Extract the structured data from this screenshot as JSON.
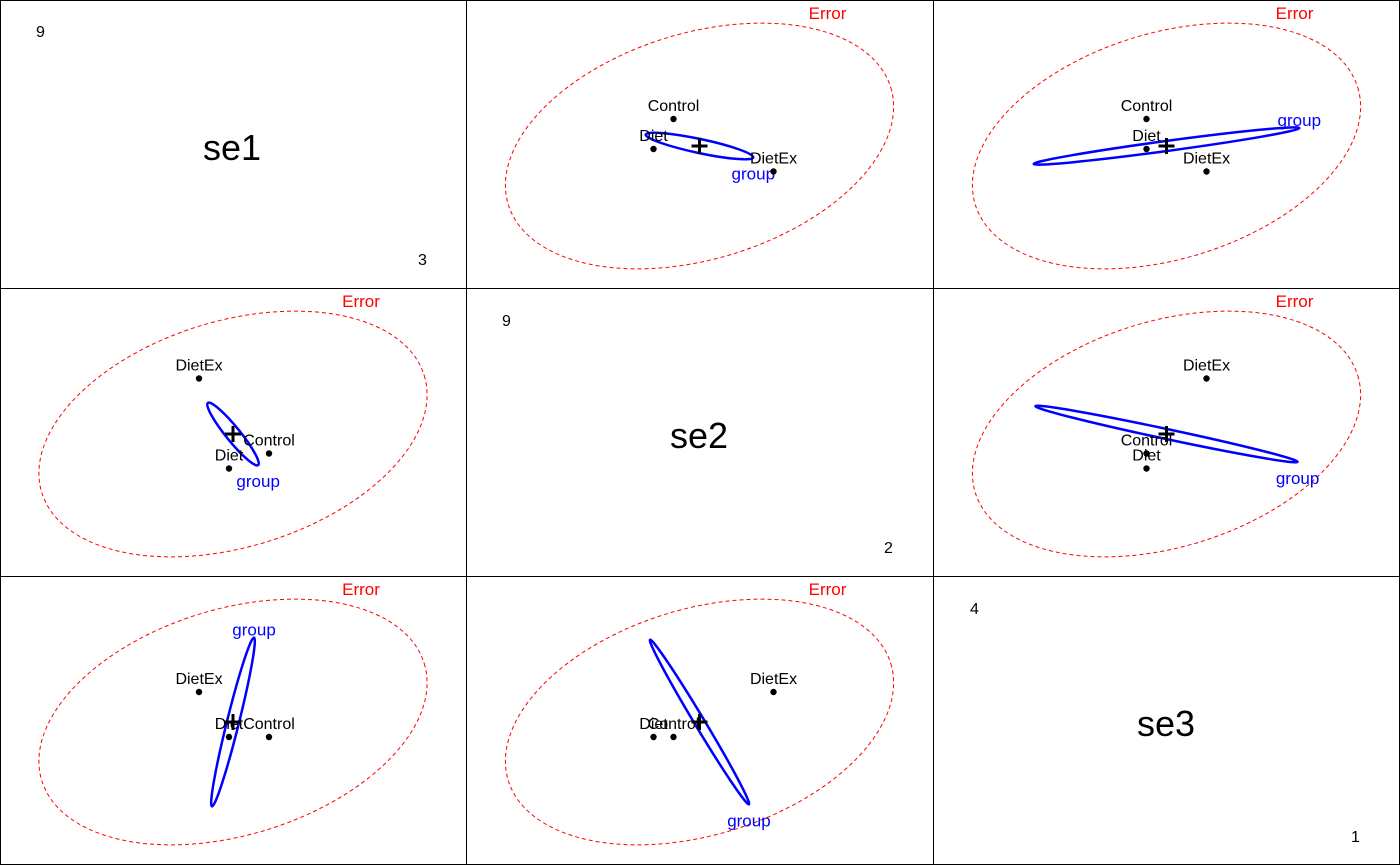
{
  "chart_data": {
    "type": "scatter",
    "variables": [
      {
        "name": "se1",
        "min": "3",
        "max": "9"
      },
      {
        "name": "se2",
        "min": "2",
        "max": "9"
      },
      {
        "name": "se3",
        "min": "1",
        "max": "4"
      }
    ],
    "levels": [
      "Control",
      "Diet",
      "DietEx"
    ],
    "hypothesis_label": "group",
    "error_label": "Error",
    "colors": {
      "hypothesis": "#0000ff",
      "error": "#ff0000",
      "points": "#000000",
      "text": "#000000"
    },
    "means": [
      {
        "level": "Control",
        "se1": 6.15,
        "se2": 5.1,
        "se3": 2.55
      },
      {
        "level": "Diet",
        "se1": 5.95,
        "se2": 5.0,
        "se3": 2.55
      },
      {
        "level": "DietEx",
        "se1": 5.8,
        "se2": 5.6,
        "se3": 2.85
      }
    ],
    "grand_mean": {
      "se1": 5.97,
      "se2": 5.23,
      "se3": 2.65
    }
  }
}
